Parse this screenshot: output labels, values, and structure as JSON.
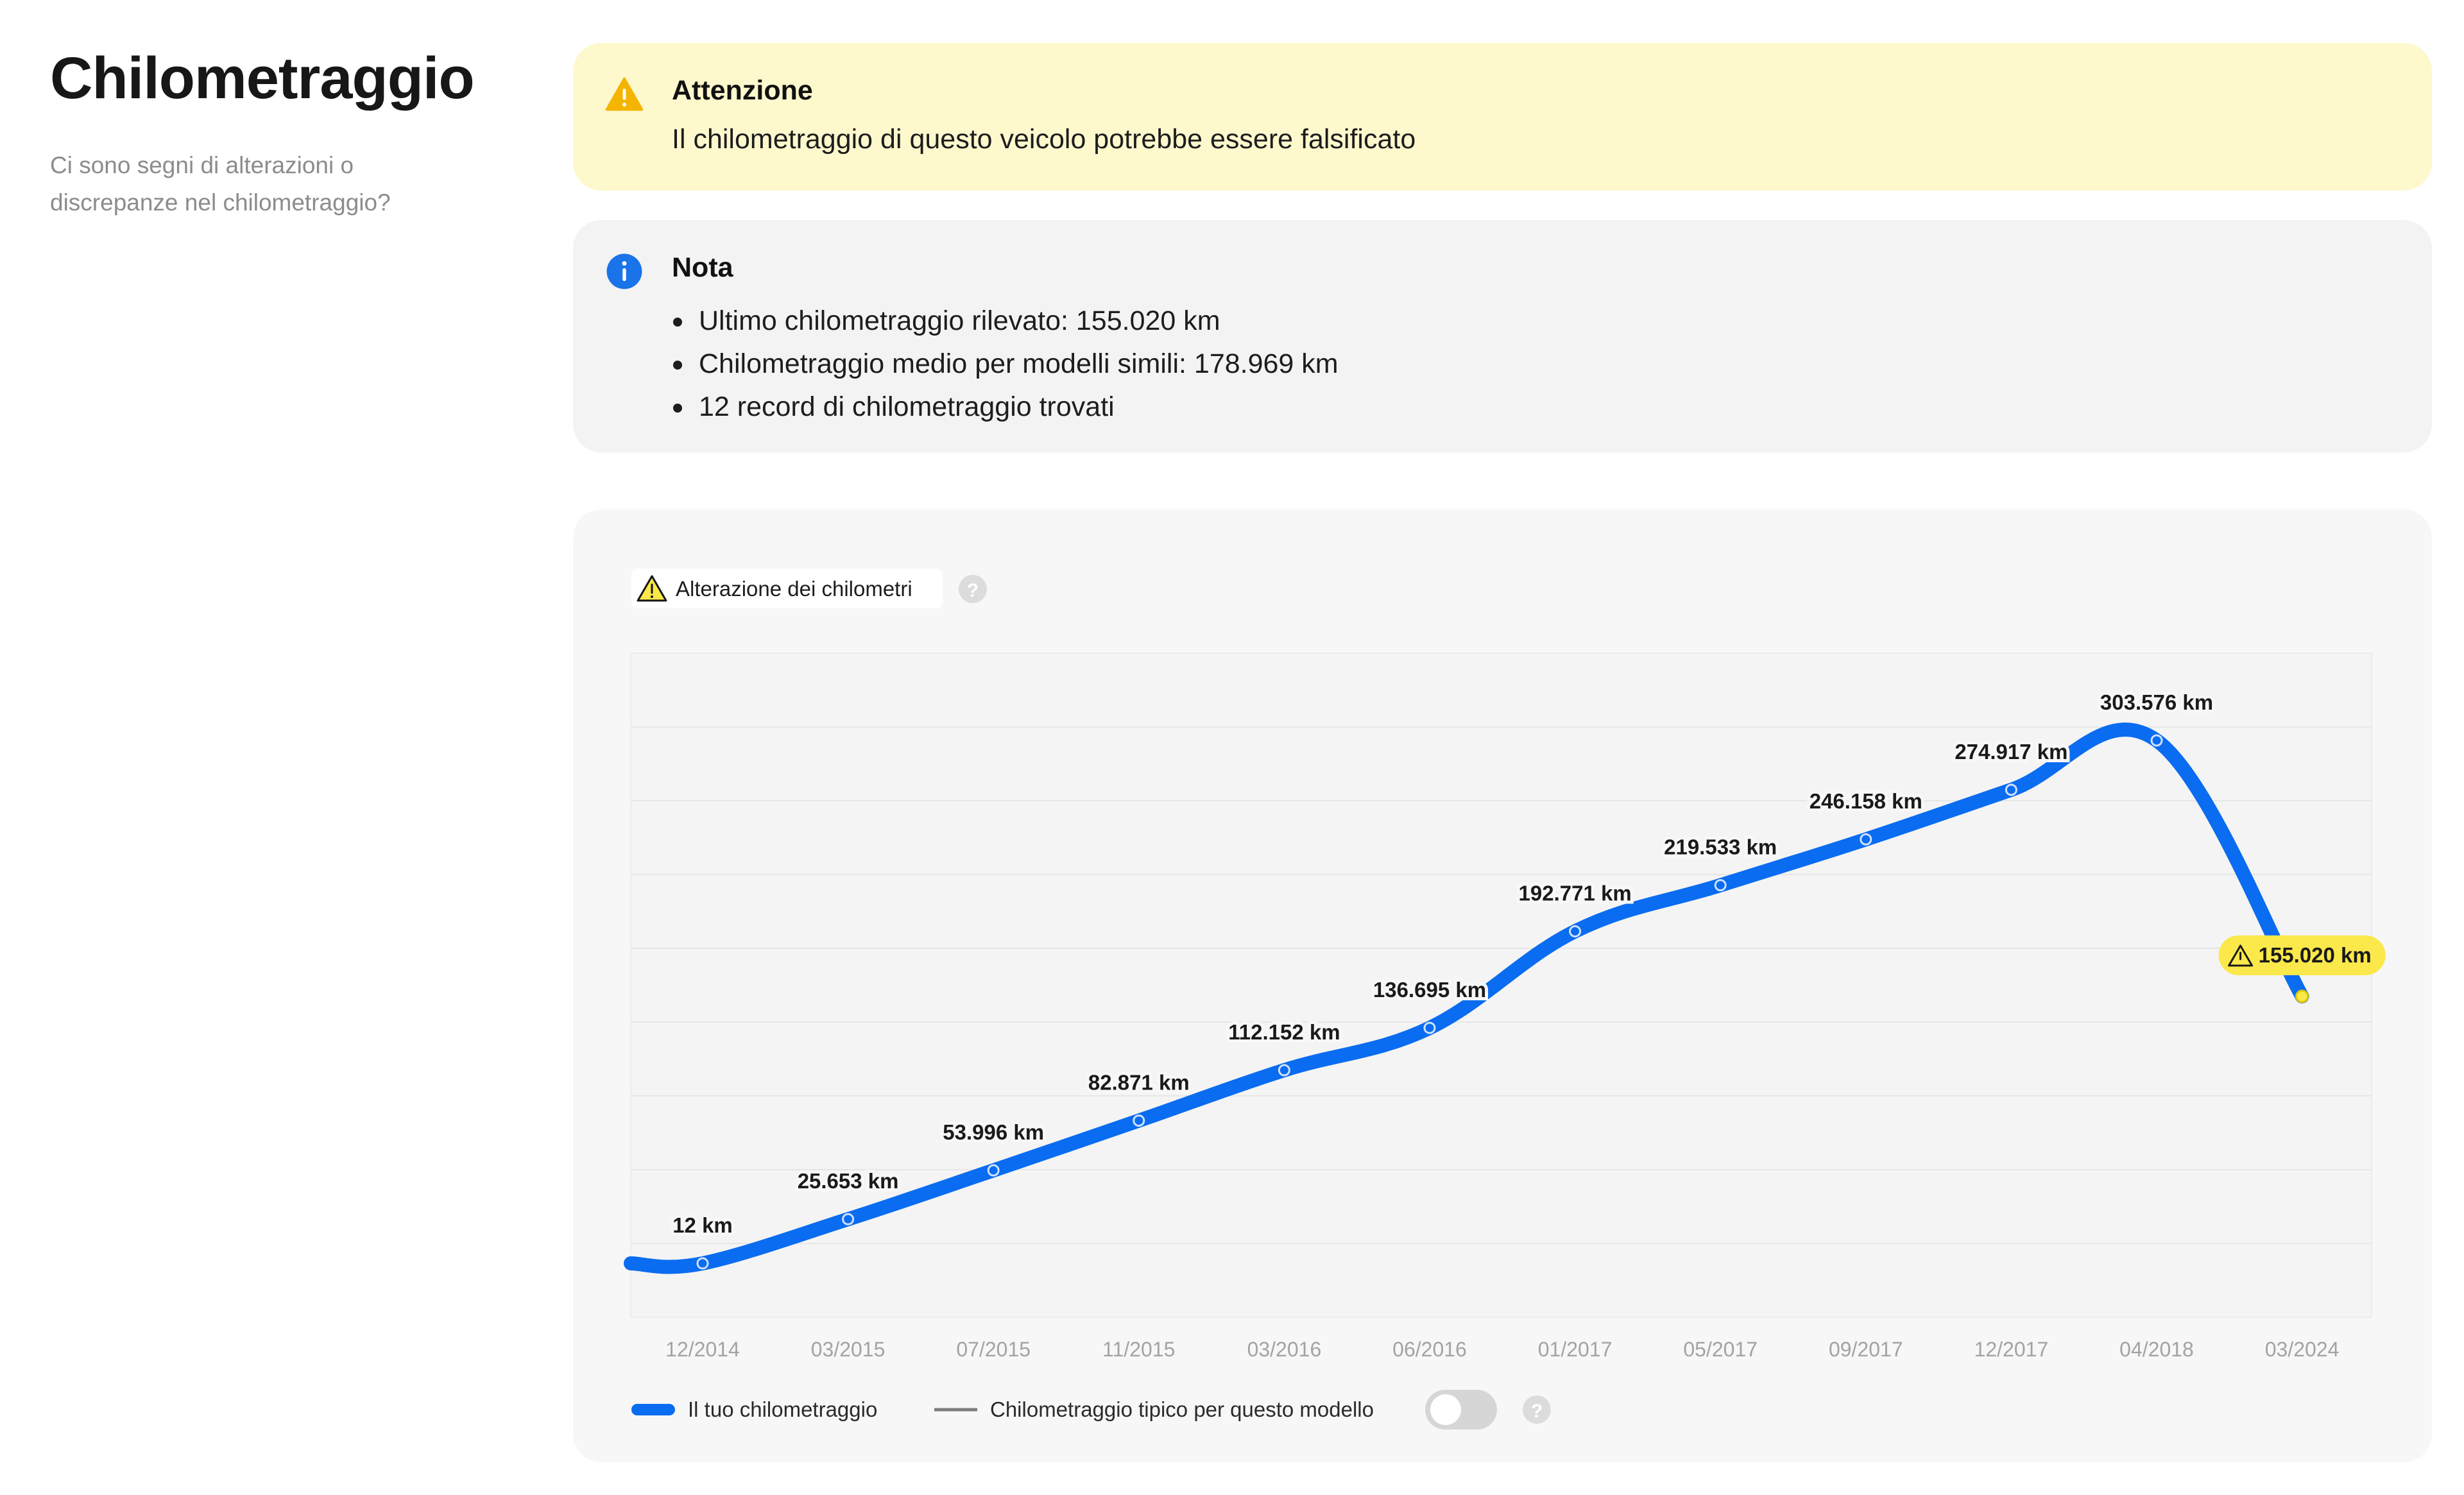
{
  "section": {
    "title": "Chilometraggio",
    "subtitle_line1": "Ci sono segni di alterazioni o",
    "subtitle_line2": "discrepanze nel chilometraggio?"
  },
  "warning": {
    "icon": "warning-triangle-icon",
    "title": "Attenzione",
    "message": "Il chilometraggio di questo veicolo potrebbe essere falsificato",
    "color": "#fef8cd",
    "icon_color": "#f4b400"
  },
  "note": {
    "icon": "info-icon",
    "title": "Nota",
    "items": [
      "Ultimo chilometraggio rilevato: 155.020 km",
      "Chilometraggio medio per modelli simili: 178.969 km",
      "12 record di chilometraggio trovati"
    ],
    "icon_color": "#1a73e8"
  },
  "chart_badge": {
    "label": "Alterazione dei chilometri",
    "help": "?"
  },
  "legend": {
    "yours": "Il tuo chilometraggio",
    "typical": "Chilometraggio tipico per questo modello",
    "toggle_on": false,
    "help": "?"
  },
  "chart_data": {
    "type": "line",
    "ylim": [
      0,
      330000
    ],
    "grid": true,
    "line_color": "#0a6cf0",
    "alert_color": "#fbe84a",
    "categories": [
      "12/2014",
      "03/2015",
      "07/2015",
      "11/2015",
      "03/2016",
      "06/2016",
      "01/2017",
      "05/2017",
      "09/2017",
      "12/2017",
      "04/2018",
      "03/2024"
    ],
    "series": [
      {
        "name": "Il tuo chilometraggio",
        "values": [
          12,
          25653,
          53996,
          82871,
          112152,
          136695,
          192771,
          219533,
          246158,
          274917,
          303576,
          155020
        ],
        "labels": [
          "12 km",
          "25.653 km",
          "53.996 km",
          "82.871 km",
          "112.152 km",
          "136.695 km",
          "192.771 km",
          "219.533 km",
          "246.158 km",
          "274.917 km",
          "303.576 km",
          "155.020 km"
        ],
        "flagged_index": 11
      }
    ]
  }
}
